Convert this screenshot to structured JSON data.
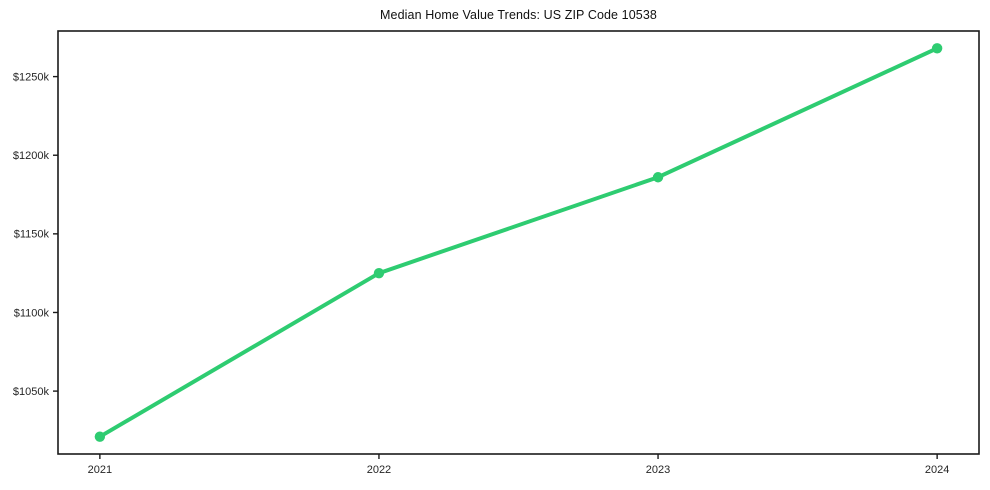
{
  "chart_data": {
    "type": "line",
    "title": "Median Home Value Trends: US ZIP Code 10538",
    "series_name": "Median home value",
    "x": [
      2021,
      2022,
      2023,
      2024
    ],
    "x_tick_labels": [
      "2021",
      "2022",
      "2023",
      "2024"
    ],
    "values": [
      1021,
      1125,
      1186,
      1268
    ],
    "unit": "thousands of USD",
    "y_ticks": [
      1050,
      1100,
      1150,
      1200,
      1250
    ],
    "y_tick_labels": [
      "$1050k",
      "$1100k",
      "$1150k",
      "$1200k",
      "$1250k"
    ],
    "xlim": [
      2020.85,
      2024.15
    ],
    "ylim": [
      1010,
      1279
    ],
    "grid": false,
    "legend": "none",
    "line_color": "#2ecc71",
    "marker_color": "#2ecc71",
    "axis_color": "#1a1a1a",
    "tick_text_color": "#262626",
    "background_color": "#ffffff"
  }
}
